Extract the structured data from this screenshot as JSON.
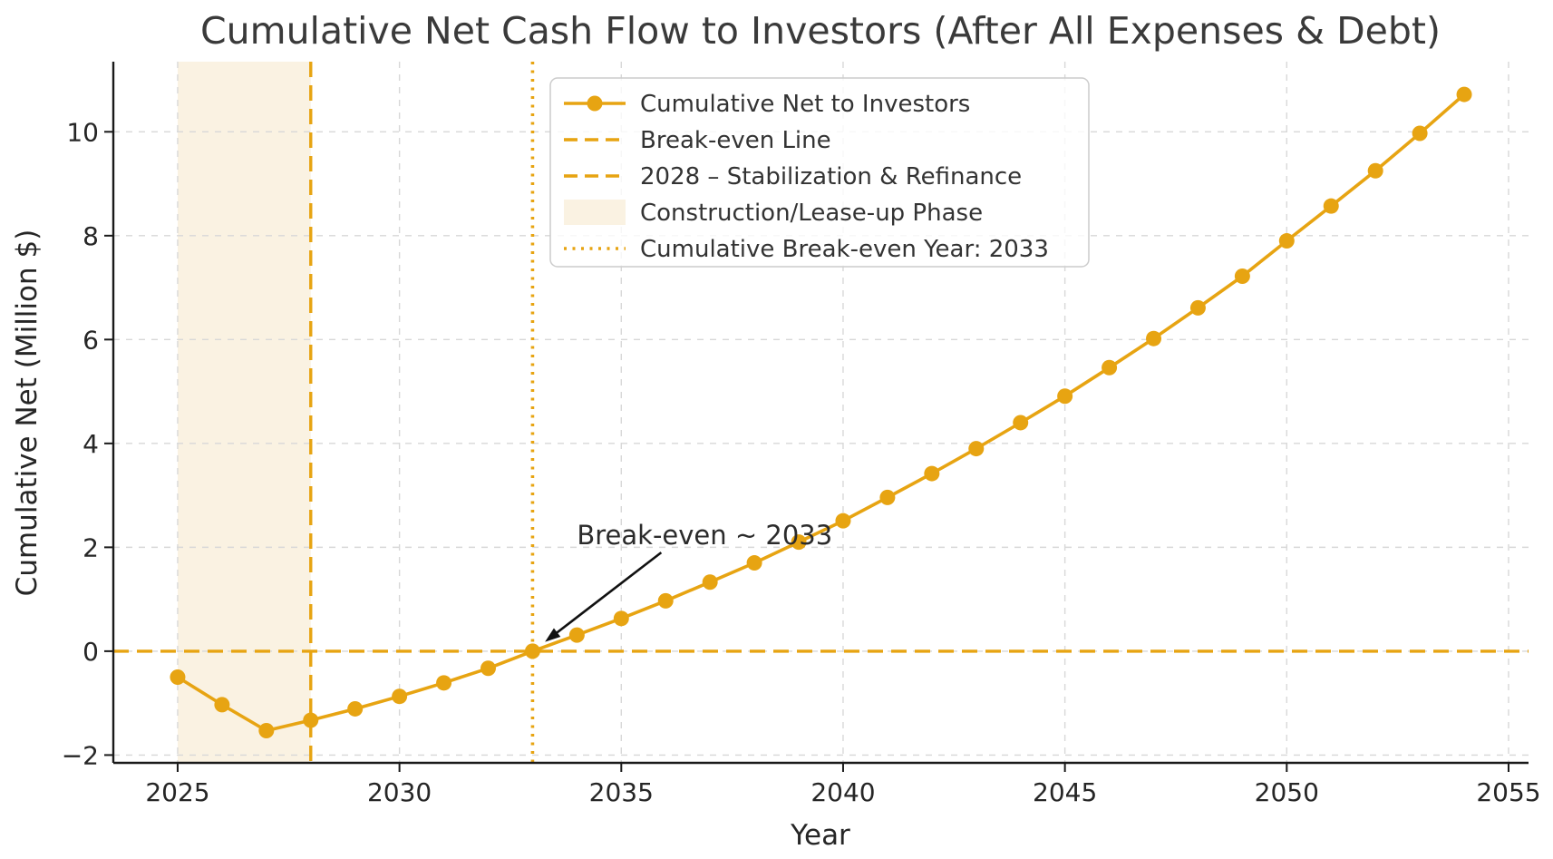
{
  "chart_data": {
    "type": "line",
    "title": "Cumulative Net Cash Flow to Investors (After All Expenses & Debt)",
    "xlabel": "Year",
    "ylabel": "Cumulative Net (Million $)",
    "x": [
      2025,
      2026,
      2027,
      2028,
      2029,
      2030,
      2031,
      2032,
      2033,
      2034,
      2035,
      2036,
      2037,
      2038,
      2039,
      2040,
      2041,
      2042,
      2043,
      2044,
      2045,
      2046,
      2047,
      2048,
      2049,
      2050,
      2051,
      2052,
      2053,
      2054
    ],
    "series": [
      {
        "name": "Cumulative Net to Investors",
        "values": [
          -0.5,
          -1.03,
          -1.53,
          -1.33,
          -1.11,
          -0.87,
          -0.61,
          -0.33,
          0.0,
          0.31,
          0.63,
          0.97,
          1.33,
          1.7,
          2.1,
          2.51,
          2.96,
          3.42,
          3.9,
          4.4,
          4.91,
          5.46,
          6.02,
          6.61,
          7.22,
          7.9,
          8.57,
          9.25,
          9.97,
          10.72
        ]
      }
    ],
    "xlim": [
      2023.55,
      2055.45
    ],
    "ylim": [
      -2.15,
      11.35
    ],
    "x_ticks": [
      2025,
      2030,
      2035,
      2040,
      2045,
      2050,
      2055
    ],
    "x_tick_labels": [
      "2025",
      "2030",
      "2035",
      "2040",
      "2045",
      "2050",
      "2055"
    ],
    "y_ticks": [
      -2,
      0,
      2,
      4,
      6,
      8,
      10
    ],
    "y_tick_labels": [
      "−2",
      "0",
      "2",
      "4",
      "6",
      "8",
      "10"
    ],
    "grid": true,
    "legend_position": "upper center",
    "legend": {
      "entries": [
        {
          "label": "Cumulative Net to Investors",
          "style": "line-marker"
        },
        {
          "label": "Break-even Line",
          "style": "dashed"
        },
        {
          "label": "2028 – Stabilization & Refinance",
          "style": "dashed"
        },
        {
          "label": "Construction/Lease-up Phase",
          "style": "patch"
        },
        {
          "label": "Cumulative Break-even Year: 2033",
          "style": "dotted"
        }
      ]
    },
    "reference_lines": {
      "break_even_y": 0,
      "stabilization_x": 2028,
      "cumulative_break_even_x": 2033
    },
    "shaded_span": {
      "x0": 2025,
      "x1": 2028
    },
    "annotation": {
      "text": "Break-even ~ 2033",
      "text_x": 2034.0,
      "text_y": 2.06,
      "arrow_from_x": 2035.9,
      "arrow_from_y": 1.9,
      "arrow_to_x": 2033.28,
      "arrow_to_y": 0.18
    },
    "colors": {
      "accent": "#E7A412",
      "span_fill": "#FAF2E2",
      "grid": "#D8D8D8",
      "axis": "#1a1a1a",
      "text": "#262626",
      "annotation_arrow": "#111111",
      "legend_border": "#cccccc"
    }
  }
}
